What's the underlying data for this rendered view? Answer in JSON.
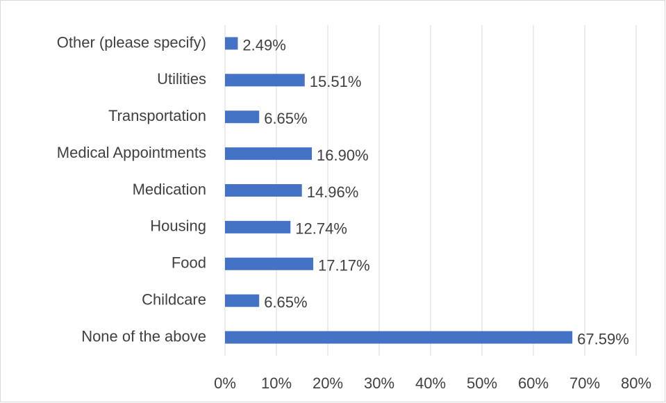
{
  "chart_data": {
    "type": "bar",
    "orientation": "horizontal",
    "categories": [
      "Other (please specify)",
      "Utilities",
      "Transportation",
      "Medical Appointments",
      "Medication",
      "Housing",
      "Food",
      "Childcare",
      "None of the above"
    ],
    "values": [
      2.49,
      15.51,
      6.65,
      16.9,
      14.96,
      12.74,
      17.17,
      6.65,
      67.59
    ],
    "value_labels": [
      "2.49%",
      "15.51%",
      "6.65%",
      "16.90%",
      "14.96%",
      "12.74%",
      "17.17%",
      "6.65%",
      "67.59%"
    ],
    "color": "#4472c4",
    "xlim": [
      0,
      80
    ],
    "xticks": [
      {
        "value": 0,
        "label": "0%"
      },
      {
        "value": 10,
        "label": "10%"
      },
      {
        "value": 20,
        "label": "20%"
      },
      {
        "value": 30,
        "label": "30%"
      },
      {
        "value": 40,
        "label": "40%"
      },
      {
        "value": 50,
        "label": "50%"
      },
      {
        "value": 60,
        "label": "60%"
      },
      {
        "value": 70,
        "label": "70%"
      },
      {
        "value": 80,
        "label": "80%"
      }
    ],
    "grid": true
  }
}
